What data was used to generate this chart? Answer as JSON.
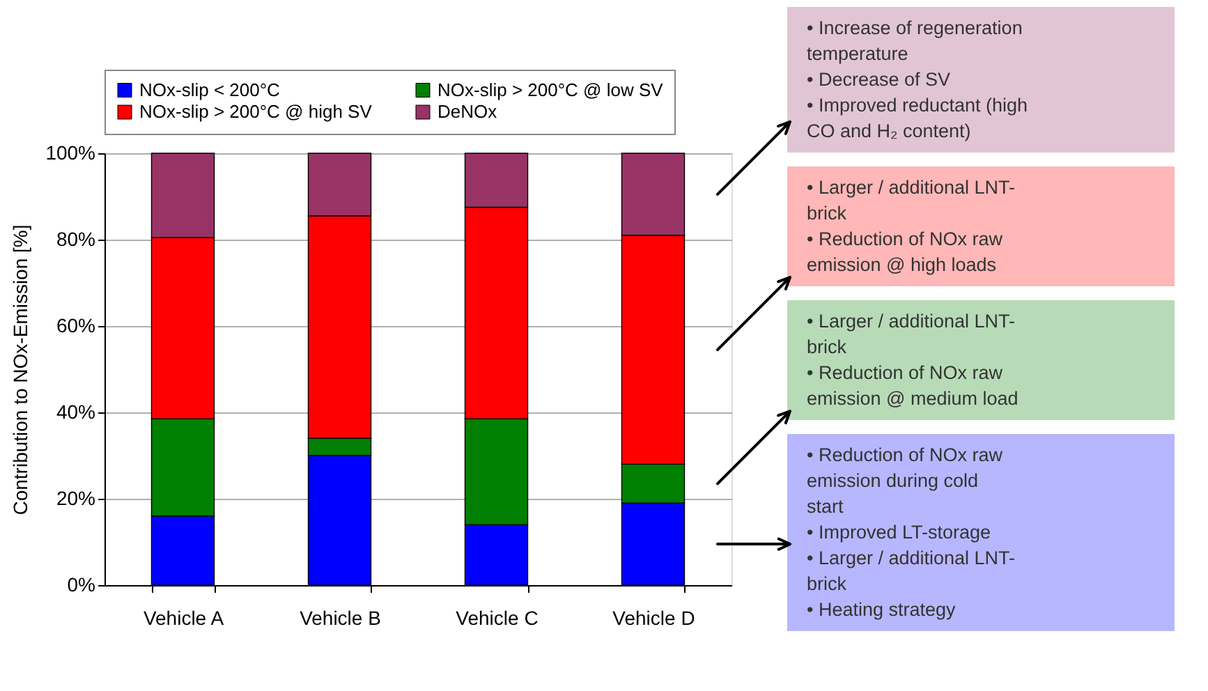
{
  "chart_data": {
    "type": "bar",
    "stacked": true,
    "categories": [
      "Vehicle A",
      "Vehicle B",
      "Vehicle C",
      "Vehicle D"
    ],
    "series": [
      {
        "name": "NOx-slip < 200°C",
        "color": "#0000ff",
        "values": [
          16,
          30,
          14,
          19
        ]
      },
      {
        "name": "NOx-slip > 200°C @ low SV",
        "color": "#007f00",
        "values": [
          22.5,
          4,
          24.5,
          9
        ]
      },
      {
        "name": "NOx-slip > 200°C @ high SV",
        "color": "#ff0000",
        "values": [
          42,
          51.5,
          49,
          53
        ]
      },
      {
        "name": "DeNOx",
        "color": "#993366",
        "values": [
          19.5,
          14.5,
          12.5,
          19
        ]
      }
    ],
    "ylabel": "Contribution to NOx-Emission [%]",
    "ylim": [
      0,
      100
    ],
    "yticks": [
      {
        "value": 0,
        "label": "0%"
      },
      {
        "value": 20,
        "label": "20%"
      },
      {
        "value": 40,
        "label": "40%"
      },
      {
        "value": 60,
        "label": "60%"
      },
      {
        "value": 80,
        "label": "80%"
      },
      {
        "value": 100,
        "label": "100%"
      }
    ],
    "grid": "y",
    "legend": "top",
    "annotations": [
      "• Increase of regeneration temperature\n• Decrease of SV\n• Improved reductant (high CO and H₂ content)",
      "• Larger / additional LNT-brick\n• Reduction of NOx raw emission @ high loads",
      "• Larger / additional LNT-brick\n• Reduction of NOx raw emission @ medium load",
      "• Reduction of NOx raw emission during cold start\n• Improved LT-storage\n• Larger / additional LNT-brick\n• Heating strategy"
    ]
  }
}
